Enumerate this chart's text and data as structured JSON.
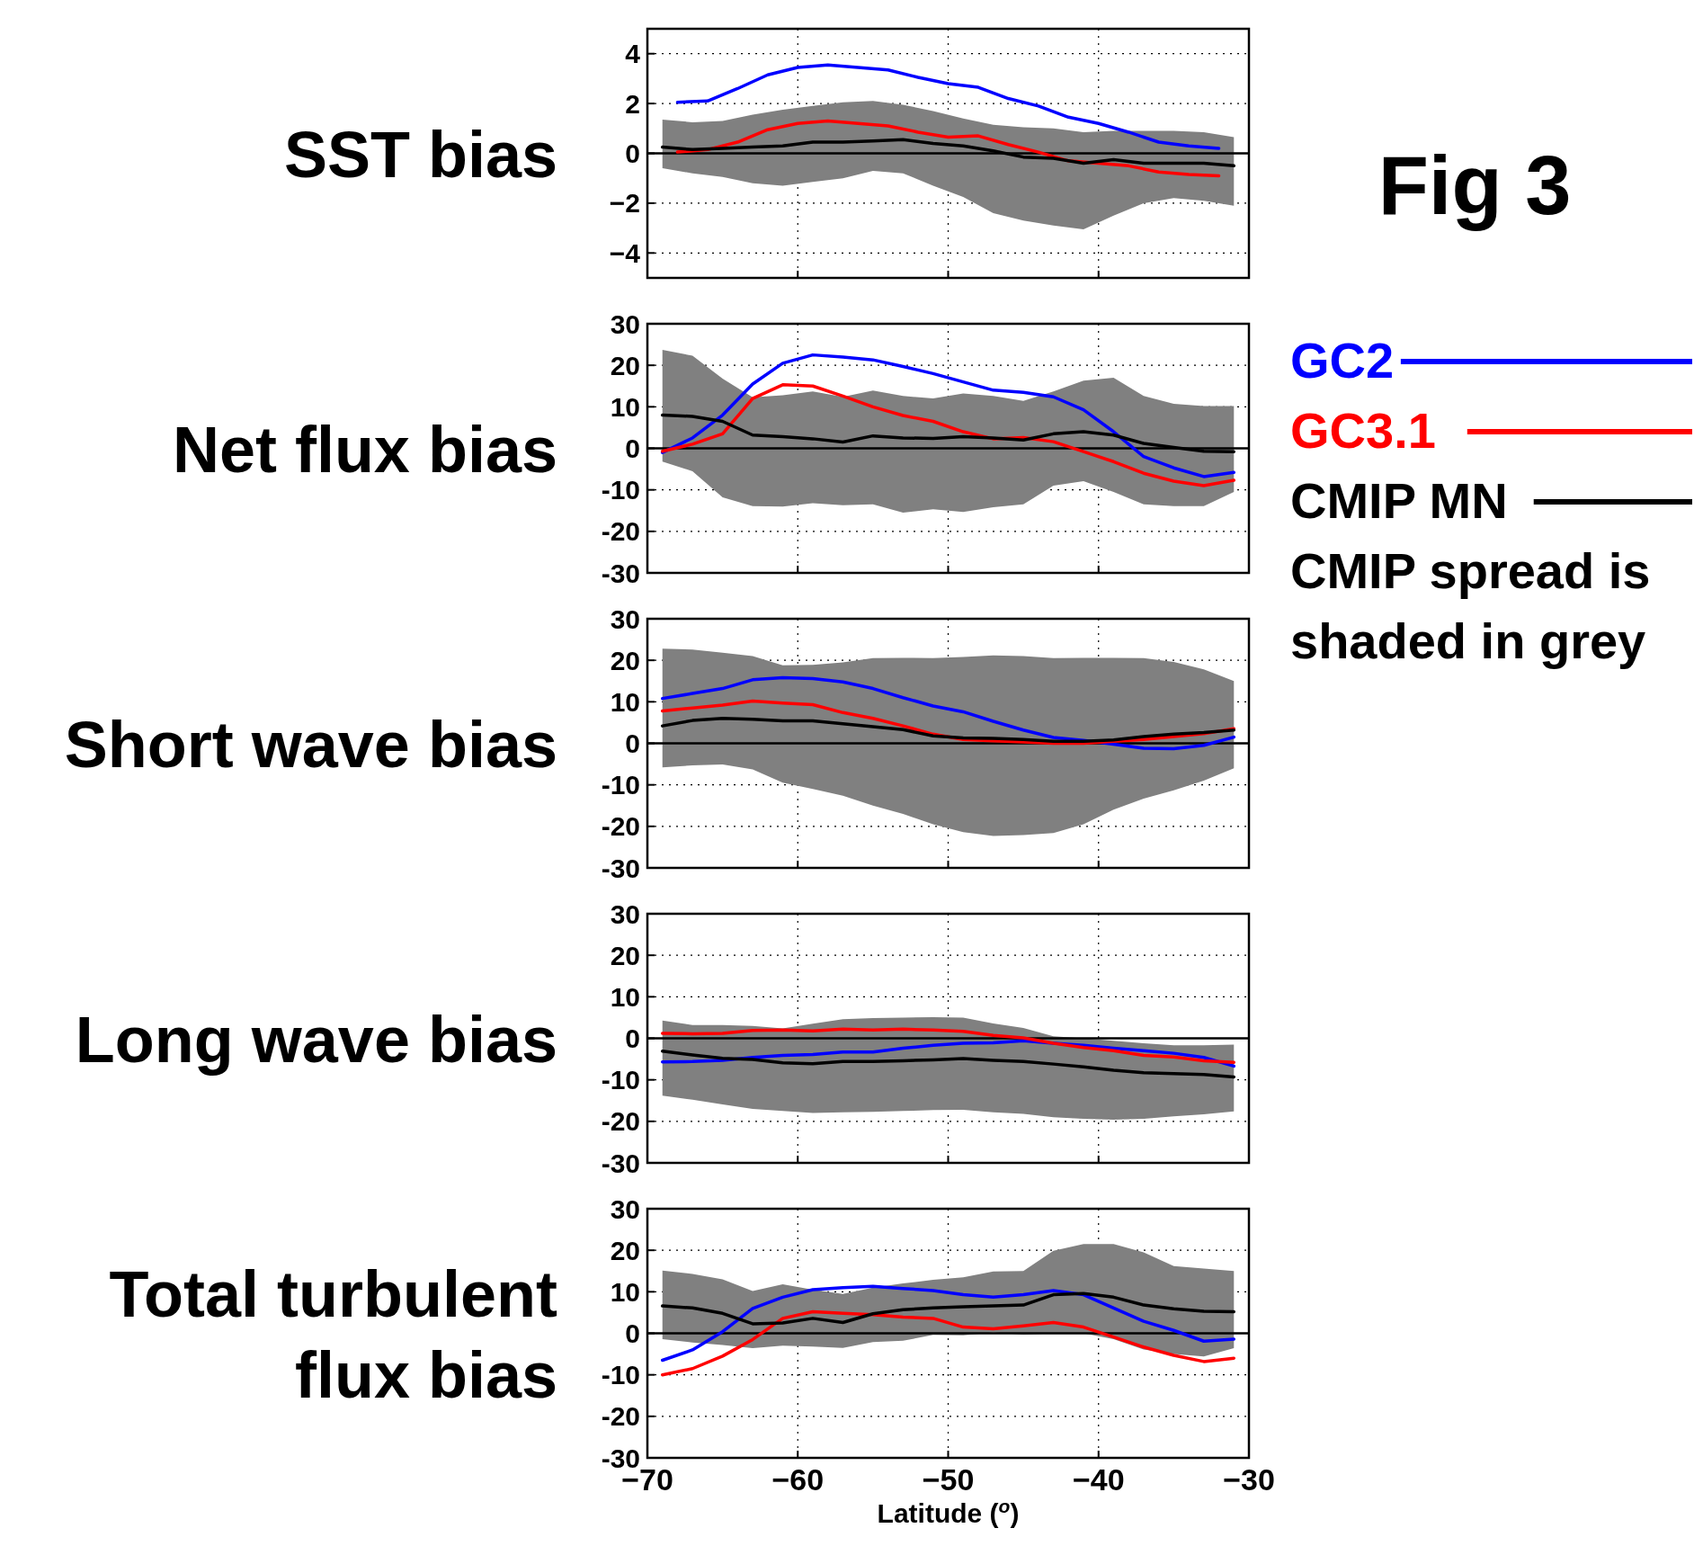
{
  "chart_data": [
    {
      "type": "line",
      "annotations": [
        "Fig 3"
      ],
      "ylabel": "SST bias",
      "x": [
        -69,
        -67,
        -65,
        -63,
        -61,
        -59,
        -57,
        -55,
        -53,
        -51,
        -49,
        -47,
        -45,
        -43,
        -41,
        -39,
        -37,
        -35,
        -33,
        -31
      ],
      "xlim": [
        -70,
        -30
      ],
      "xticks": [
        {
          "value": -70,
          "label": null
        },
        {
          "value": -60,
          "label": null
        },
        {
          "value": -50,
          "label": null
        },
        {
          "value": -40,
          "label": null
        },
        {
          "value": -30,
          "label": null
        }
      ],
      "ylim": [
        -5,
        5
      ],
      "yticks": [
        {
          "value": -4,
          "label": "−4"
        },
        {
          "value": -2,
          "label": "−2"
        },
        0,
        2,
        4
      ],
      "grid": true,
      "tick_labels": "y",
      "ref_lines": [
        {
          "axis": "y",
          "value": 0,
          "color": "#000000"
        }
      ],
      "series": [
        {
          "color": "#0000ff",
          "x": [
            -68,
            -66,
            -64,
            -62,
            -60,
            -58,
            -56,
            -54,
            -52,
            -50,
            -48,
            -46,
            -44,
            -42,
            -40,
            -38,
            -36,
            -34,
            -32
          ],
          "values": [
            2.05,
            2.1,
            2.6,
            3.15,
            3.45,
            3.55,
            3.45,
            3.35,
            3.05,
            2.8,
            2.65,
            2.2,
            1.9,
            1.45,
            1.2,
            0.85,
            0.45,
            0.3,
            0.2
          ]
        },
        {
          "color": "#ff0000",
          "x": [
            -68,
            -66,
            -64,
            -62,
            -60,
            -58,
            -56,
            -54,
            -52,
            -50,
            -48,
            -46,
            -44,
            -42,
            -40,
            -38,
            -36,
            -34,
            -32
          ],
          "values": [
            0.05,
            0.15,
            0.45,
            0.95,
            1.2,
            1.3,
            1.2,
            1.1,
            0.85,
            0.65,
            0.7,
            0.35,
            0.05,
            -0.3,
            -0.4,
            -0.5,
            -0.75,
            -0.85,
            -0.9
          ]
        },
        {
          "color": "#000000",
          "values": [
            0.25,
            0.15,
            0.2,
            0.25,
            0.3,
            0.45,
            0.45,
            0.5,
            0.55,
            0.4,
            0.3,
            0.1,
            -0.15,
            -0.2,
            -0.4,
            -0.25,
            -0.4,
            -0.4,
            -0.4,
            -0.5
          ],
          "upper": [
            1.35,
            1.25,
            1.3,
            1.55,
            1.75,
            1.9,
            2.05,
            2.1,
            1.95,
            1.7,
            1.4,
            1.15,
            1.05,
            1.0,
            0.85,
            0.9,
            0.9,
            0.9,
            0.85,
            0.65
          ],
          "lower": [
            -0.6,
            -0.8,
            -0.95,
            -1.2,
            -1.3,
            -1.15,
            -1.0,
            -0.7,
            -0.8,
            -1.3,
            -1.75,
            -2.4,
            -2.7,
            -2.9,
            -3.05,
            -2.5,
            -2.0,
            -1.8,
            -1.9,
            -2.1
          ]
        }
      ]
    },
    {
      "type": "line",
      "ylabel": "Net flux bias",
      "x": [
        -69,
        -67,
        -65,
        -63,
        -61,
        -59,
        -57,
        -55,
        -53,
        -51,
        -49,
        -47,
        -45,
        -43,
        -41,
        -39,
        -37,
        -35,
        -33,
        -31
      ],
      "xlim": [
        -70,
        -30
      ],
      "xticks": [
        {
          "value": -70,
          "label": null
        },
        {
          "value": -60,
          "label": null
        },
        {
          "value": -50,
          "label": null
        },
        {
          "value": -40,
          "label": null
        },
        {
          "value": -30,
          "label": null
        }
      ],
      "ylim": [
        -30,
        30
      ],
      "yticks": [
        -30,
        -20,
        -10,
        0,
        10,
        20,
        30
      ],
      "grid": true,
      "tick_labels": "y",
      "legend": "right",
      "annotations": [
        "CMIP spread is shaded in grey"
      ],
      "ref_lines": [
        {
          "axis": "y",
          "value": 0,
          "color": "#000000"
        }
      ],
      "series": [
        {
          "name": "GC2",
          "color": "#0000ff",
          "values": [
            -1,
            2.5,
            8,
            15.5,
            20.5,
            22.5,
            22,
            21.3,
            19.7,
            18,
            16,
            14,
            13.5,
            12.4,
            9.3,
            4,
            -2,
            -4.7,
            -6.8,
            -5.8
          ]
        },
        {
          "name": "GC3.1",
          "color": "#ff0000",
          "values": [
            -0.7,
            1,
            3.5,
            12,
            15.3,
            15,
            12.6,
            10,
            7.9,
            6.5,
            4,
            2.3,
            2.6,
            1.6,
            -0.8,
            -3.2,
            -6,
            -7.9,
            -9,
            -7.7
          ]
        },
        {
          "name": "CMIP MN",
          "color": "#000000",
          "values": [
            8,
            7.7,
            6.5,
            3.2,
            2.8,
            2.3,
            1.5,
            3,
            2.5,
            2.4,
            2.8,
            2.5,
            2,
            3.5,
            4,
            3.2,
            1.2,
            0.2,
            -0.7,
            -0.8
          ],
          "upper": [
            23.7,
            22.3,
            16.8,
            12.3,
            12.8,
            13.7,
            12.4,
            13.9,
            12.6,
            12,
            13.2,
            12.6,
            11.4,
            13.7,
            16.3,
            17,
            12.6,
            10.7,
            10.2,
            10.2
          ],
          "lower": [
            -3.2,
            -5.5,
            -11.8,
            -13.9,
            -14,
            -13.2,
            -13.7,
            -13.5,
            -15.5,
            -14.7,
            -15.3,
            -14.2,
            -13.5,
            -9,
            -7.9,
            -10.5,
            -13.5,
            -13.9,
            -13.9,
            -10.5
          ]
        }
      ]
    },
    {
      "type": "line",
      "ylabel": "Short wave bias",
      "x": [
        -69,
        -67,
        -65,
        -63,
        -61,
        -59,
        -57,
        -55,
        -53,
        -51,
        -49,
        -47,
        -45,
        -43,
        -41,
        -39,
        -37,
        -35,
        -33,
        -31
      ],
      "xlim": [
        -70,
        -30
      ],
      "xticks": [
        {
          "value": -70,
          "label": null
        },
        {
          "value": -60,
          "label": null
        },
        {
          "value": -50,
          "label": null
        },
        {
          "value": -40,
          "label": null
        },
        {
          "value": -30,
          "label": null
        }
      ],
      "ylim": [
        -30,
        30
      ],
      "yticks": [
        -30,
        -20,
        -10,
        0,
        10,
        20,
        30
      ],
      "grid": true,
      "tick_labels": "y",
      "ref_lines": [
        {
          "axis": "y",
          "value": 0,
          "color": "#000000"
        }
      ],
      "series": [
        {
          "color": "#0000ff",
          "values": [
            10.8,
            12,
            13.2,
            15.3,
            15.8,
            15.6,
            14.8,
            13.2,
            11,
            9,
            7.6,
            5.3,
            3.2,
            1.4,
            0.7,
            -0.2,
            -1.2,
            -1.3,
            -0.5,
            1.5
          ]
        },
        {
          "color": "#ff0000",
          "values": [
            7.8,
            8.5,
            9.2,
            10.2,
            9.7,
            9.3,
            7.4,
            6,
            4.2,
            2.2,
            0.9,
            0.6,
            0.3,
            0,
            0,
            0.5,
            0.9,
            1.6,
            2.3,
            3.5
          ]
        },
        {
          "color": "#000000",
          "values": [
            4.2,
            5.5,
            6,
            5.8,
            5.4,
            5.4,
            4.7,
            4,
            3.3,
            1.8,
            1.3,
            1.2,
            0.9,
            0.5,
            0.5,
            0.8,
            1.6,
            2.2,
            2.6,
            3.2
          ],
          "upper": [
            22.8,
            22.6,
            21.8,
            21,
            18.8,
            18.9,
            19.5,
            20.5,
            20.6,
            20.5,
            20.8,
            21.2,
            21,
            20.5,
            20.6,
            20.6,
            20.5,
            19.6,
            17.8,
            15
          ],
          "lower": [
            -5.8,
            -5.3,
            -5.1,
            -6.3,
            -9.5,
            -11,
            -12.6,
            -15,
            -17,
            -19.5,
            -21.4,
            -22.3,
            -22.1,
            -21.6,
            -19.5,
            -16,
            -13.3,
            -11.3,
            -9,
            -6
          ]
        }
      ]
    },
    {
      "type": "line",
      "ylabel": "Long wave bias",
      "x": [
        -69,
        -67,
        -65,
        -63,
        -61,
        -59,
        -57,
        -55,
        -53,
        -51,
        -49,
        -47,
        -45,
        -43,
        -41,
        -39,
        -37,
        -35,
        -33,
        -31
      ],
      "xlim": [
        -70,
        -30
      ],
      "xticks": [
        {
          "value": -70,
          "label": null
        },
        {
          "value": -60,
          "label": null
        },
        {
          "value": -50,
          "label": null
        },
        {
          "value": -40,
          "label": null
        },
        {
          "value": -30,
          "label": null
        }
      ],
      "ylim": [
        -30,
        30
      ],
      "yticks": [
        -30,
        -20,
        -10,
        0,
        10,
        20,
        30
      ],
      "grid": true,
      "tick_labels": "y",
      "ref_lines": [
        {
          "axis": "y",
          "value": 0,
          "color": "#000000"
        }
      ],
      "series": [
        {
          "color": "#0000ff",
          "values": [
            -5.7,
            -5.6,
            -5.3,
            -4.6,
            -4.1,
            -3.9,
            -3.3,
            -3.3,
            -2.4,
            -1.7,
            -1.2,
            -1.1,
            -0.6,
            -1.2,
            -1.7,
            -2.4,
            -3,
            -3.6,
            -4.6,
            -6.7
          ]
        },
        {
          "color": "#ff0000",
          "values": [
            1.2,
            1.1,
            1.2,
            1.9,
            2,
            1.8,
            2.2,
            2,
            2.2,
            2,
            1.7,
            0.7,
            0.1,
            -1.2,
            -2.2,
            -3,
            -4.1,
            -4.5,
            -5.4,
            -5.8
          ]
        },
        {
          "color": "#000000",
          "values": [
            -3.1,
            -4,
            -4.8,
            -5.1,
            -5.9,
            -6.1,
            -5.6,
            -5.6,
            -5.4,
            -5.2,
            -4.9,
            -5.3,
            -5.6,
            -6.2,
            -6.9,
            -7.7,
            -8.3,
            -8.5,
            -8.7,
            -9.3
          ],
          "upper": [
            4.3,
            3.2,
            3.2,
            3,
            2.4,
            3.5,
            4.6,
            4.9,
            5,
            5.1,
            5,
            3.6,
            2.5,
            0.5,
            0,
            -0.6,
            -1.2,
            -1.7,
            -1.7,
            -1.5
          ],
          "lower": [
            -13.8,
            -14.8,
            -15.9,
            -17,
            -17.5,
            -18,
            -17.8,
            -17.7,
            -17.5,
            -17.3,
            -17.2,
            -17.8,
            -18.2,
            -19,
            -19.4,
            -19.6,
            -19.4,
            -18.8,
            -18.3,
            -17.6
          ]
        }
      ]
    },
    {
      "type": "line",
      "ylabel": "Total turbulent flux bias",
      "xlabel": "Latitude ($^{o}$)",
      "x": [
        -69,
        -67,
        -65,
        -63,
        -61,
        -59,
        -57,
        -55,
        -53,
        -51,
        -49,
        -47,
        -45,
        -43,
        -41,
        -39,
        -37,
        -35,
        -33,
        -31
      ],
      "xlim": [
        -70,
        -30
      ],
      "xticks": [
        {
          "value": -70,
          "label": "−70"
        },
        {
          "value": -60,
          "label": "−60"
        },
        {
          "value": -50,
          "label": "−50"
        },
        {
          "value": -40,
          "label": "−40"
        },
        {
          "value": -30,
          "label": "−30"
        }
      ],
      "ylim": [
        -30,
        30
      ],
      "yticks": [
        -30,
        -20,
        -10,
        0,
        10,
        20,
        30
      ],
      "grid": true,
      "ref_lines": [
        {
          "axis": "y",
          "value": 0,
          "color": "#000000"
        }
      ],
      "series": [
        {
          "color": "#0000ff",
          "values": [
            -6.5,
            -4,
            0.4,
            6,
            8.7,
            10.5,
            11,
            11.3,
            10.8,
            10.3,
            9.3,
            8.7,
            9.3,
            10.3,
            9.3,
            6.1,
            2.9,
            0.7,
            -1.9,
            -1.4
          ]
        },
        {
          "color": "#ff0000",
          "values": [
            -10,
            -8.5,
            -5.5,
            -1.5,
            3.6,
            5.2,
            4.8,
            4.5,
            3.9,
            3.6,
            1.5,
            1.1,
            1.8,
            2.6,
            1.5,
            -0.9,
            -3.3,
            -5.3,
            -6.8,
            -6
          ]
        },
        {
          "color": "#000000",
          "values": [
            6.6,
            6.1,
            4.8,
            2.3,
            2.5,
            3.6,
            2.6,
            4.7,
            5.7,
            6.1,
            6.4,
            6.6,
            6.8,
            9.3,
            9.6,
            8.7,
            6.8,
            5.9,
            5.3,
            5.2
          ],
          "upper": [
            15.1,
            14.3,
            13,
            10.2,
            11.8,
            10.5,
            9.5,
            11,
            12,
            12.9,
            13.5,
            14.9,
            15,
            19.9,
            21.5,
            21.5,
            19.5,
            16.2,
            15.6,
            15
          ],
          "lower": [
            -1.4,
            -2.2,
            -2.8,
            -3.6,
            -3,
            -3.2,
            -3.5,
            -2.1,
            -1.8,
            -0.4,
            -0.5,
            0.2,
            -0.3,
            0,
            0,
            -1.4,
            -3.9,
            -5,
            -5.6,
            -3.6
          ]
        }
      ]
    }
  ]
}
